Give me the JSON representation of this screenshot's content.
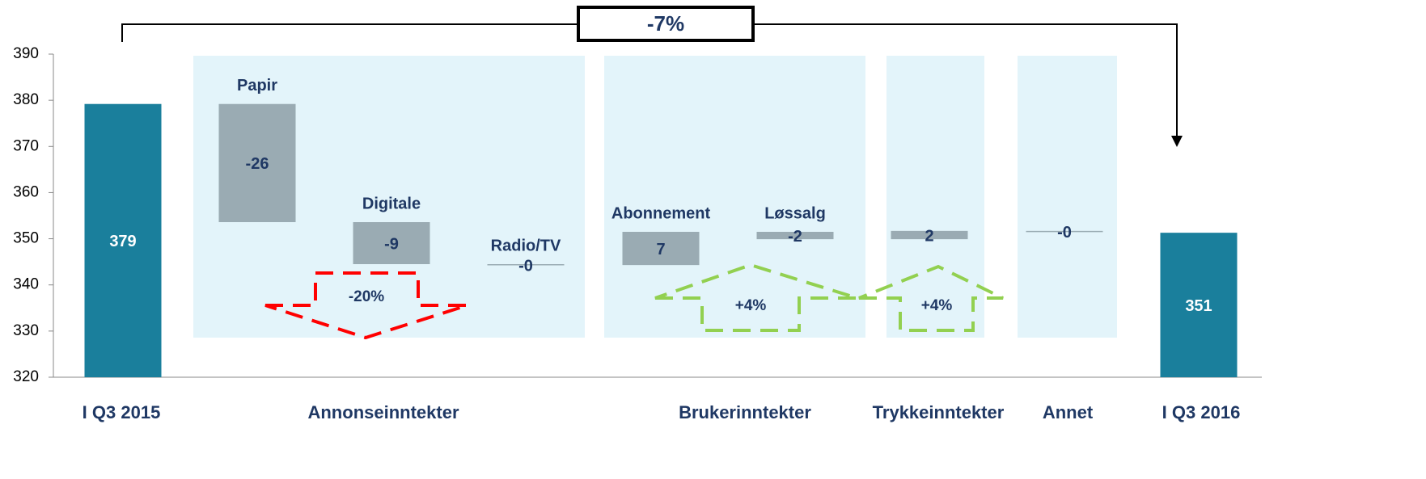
{
  "chart_data": {
    "type": "waterfall",
    "categories": [
      null,
      "Papir",
      "Digitale",
      "Radio/TV",
      "Abonnement",
      "Løssalg",
      null,
      null,
      null
    ],
    "values": [
      379.2,
      -25.6,
      -9.1,
      -0.2,
      7.2,
      -1.6,
      1.8,
      -0.2,
      351.3
    ],
    "value_labels": [
      "379",
      "-26",
      "-9",
      "-0",
      "7",
      "-2",
      "2",
      "-0",
      "351"
    ],
    "totals": [
      true,
      false,
      false,
      false,
      false,
      false,
      false,
      false,
      true
    ],
    "groups": [
      "I Q3 2015",
      "Annonseinntekter",
      "Brukerinntekter",
      "Trykkeinntekter",
      "Annet",
      "I Q3 2016"
    ],
    "annotations": [
      "-7%",
      "-20%",
      "+4%",
      "+4%"
    ],
    "total_color": "#1a7f9c",
    "delta_color": "#9aabb3",
    "panel_color": "#e3f4fa",
    "ylim": [
      320,
      390
    ],
    "yticks": [
      320,
      330,
      340,
      350,
      360,
      370,
      380,
      390
    ]
  }
}
